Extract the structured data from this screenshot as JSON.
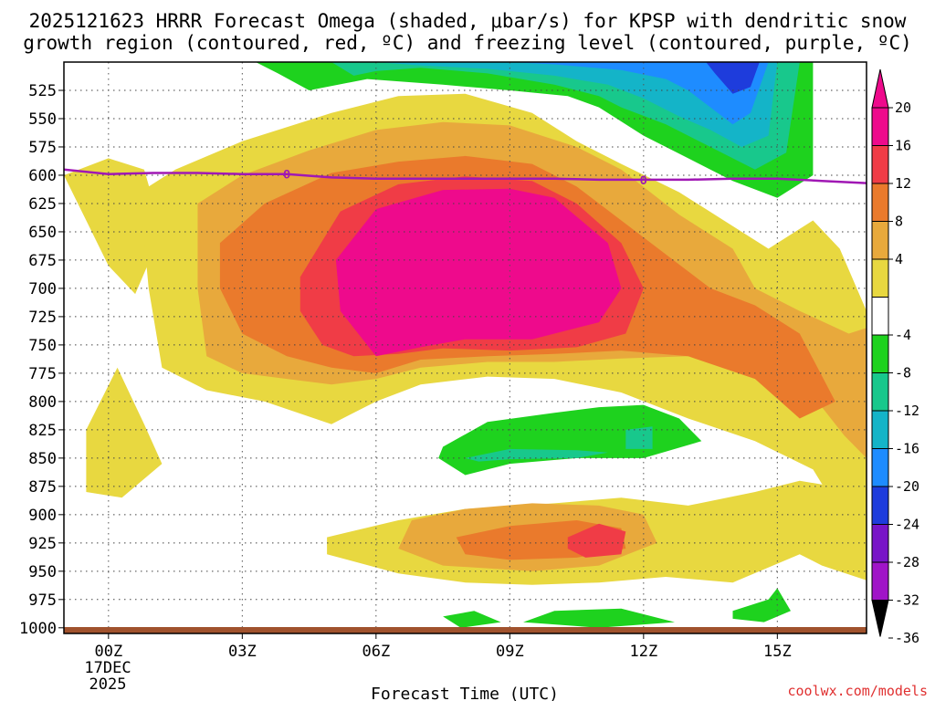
{
  "chart_data": {
    "type": "heatmap",
    "title_line1": "2025121623 HRRR Forecast Omega (shaded, μbar/s) for KPSP with dendritic snow",
    "title_line2": "growth region (contoured, red, ºC) and freezing level (contoured, purple, ºC)",
    "xlabel": "Forecast Time (UTC)",
    "credit": "coolwx.com/models",
    "x_ticks": [
      "00Z",
      "03Z",
      "06Z",
      "09Z",
      "12Z",
      "15Z"
    ],
    "x_ticks_hours": [
      0,
      3,
      6,
      9,
      12,
      15
    ],
    "x_date_line1": "17DEC",
    "x_date_line2": "2025",
    "xlim_hours": [
      -1,
      17
    ],
    "y_ticks": [
      "525",
      "550",
      "575",
      "600",
      "625",
      "650",
      "675",
      "700",
      "725",
      "750",
      "775",
      "800",
      "825",
      "850",
      "875",
      "900",
      "925",
      "950",
      "975",
      "1000"
    ],
    "ylim_hpa": [
      500,
      1005
    ],
    "colorbar_labels": [
      "20",
      "16",
      "12",
      "8",
      "4",
      "-4",
      "-8",
      "-12",
      "-16",
      "-20",
      "-24",
      "-28",
      "-32",
      "-36"
    ],
    "colorbar_colors": [
      "#ee0a8c",
      "#f03c46",
      "#ea7a2c",
      "#e8a93c",
      "#e8d840",
      "#ffffff",
      "#1ed21e",
      "#18c88c",
      "#14b4c8",
      "#1e8cff",
      "#1e3cdc",
      "#7814c8",
      "#a014c8",
      "#a0a0a0",
      "#000000"
    ],
    "freezing_level": {
      "color": "#a018b4",
      "label": "0",
      "label_hours": [
        4,
        12
      ],
      "hours": [
        -1,
        0,
        1,
        2,
        3,
        4,
        5,
        6,
        7,
        8,
        9,
        10,
        11,
        12,
        13,
        14,
        15,
        16,
        17
      ],
      "pressure_hpa": [
        595,
        599,
        598,
        598,
        599,
        599,
        602,
        603,
        603,
        603,
        603,
        603,
        604,
        604,
        604,
        603,
        603,
        605,
        607
      ]
    },
    "ground_color": "#a0522d",
    "omega_regions": [
      {
        "level": 4,
        "points": [
          [
            -1,
            600
          ],
          [
            0,
            585
          ],
          [
            0.8,
            595
          ],
          [
            1.2,
            650
          ],
          [
            0.6,
            705
          ],
          [
            0,
            680
          ],
          [
            -0.5,
            640
          ]
        ]
      },
      {
        "level": 4,
        "points": [
          [
            0.7,
            615
          ],
          [
            1.5,
            595
          ],
          [
            3,
            570
          ],
          [
            5,
            545
          ],
          [
            6.5,
            530
          ],
          [
            8,
            528
          ],
          [
            9.5,
            545
          ],
          [
            10.5,
            570
          ],
          [
            11.5,
            590
          ],
          [
            12.8,
            615
          ],
          [
            13.8,
            640
          ],
          [
            14.8,
            665
          ],
          [
            15.8,
            640
          ],
          [
            16.4,
            665
          ],
          [
            17,
            720
          ],
          [
            17,
            900
          ],
          [
            16.5,
            905
          ],
          [
            15.8,
            860
          ],
          [
            14.5,
            835
          ],
          [
            13,
            815
          ],
          [
            11.5,
            792
          ],
          [
            10,
            780
          ],
          [
            8.5,
            778
          ],
          [
            7,
            785
          ],
          [
            6,
            800
          ],
          [
            5,
            820
          ],
          [
            3.5,
            800
          ],
          [
            2.2,
            790
          ],
          [
            1.2,
            770
          ],
          [
            0.9,
            700
          ]
        ]
      },
      {
        "level": 4,
        "points": [
          [
            -0.5,
            825
          ],
          [
            0.2,
            770
          ],
          [
            0.8,
            820
          ],
          [
            1.2,
            855
          ],
          [
            0.3,
            885
          ],
          [
            -0.5,
            880
          ]
        ]
      },
      {
        "level": 4,
        "points": [
          [
            4.9,
            920
          ],
          [
            6.5,
            905
          ],
          [
            8,
            895
          ],
          [
            10,
            890
          ],
          [
            11.5,
            885
          ],
          [
            13,
            892
          ],
          [
            14.5,
            880
          ],
          [
            15.5,
            870
          ],
          [
            17,
            880
          ],
          [
            17,
            958
          ],
          [
            16,
            945
          ],
          [
            15.5,
            935
          ],
          [
            14,
            960
          ],
          [
            12.5,
            955
          ],
          [
            11,
            960
          ],
          [
            9.5,
            962
          ],
          [
            8,
            960
          ],
          [
            6.5,
            952
          ],
          [
            4.9,
            935
          ]
        ]
      },
      {
        "level": 8,
        "points": [
          [
            2,
            625
          ],
          [
            3,
            600
          ],
          [
            4.5,
            578
          ],
          [
            6,
            560
          ],
          [
            7.5,
            553
          ],
          [
            9,
            556
          ],
          [
            10.5,
            575
          ],
          [
            11.5,
            595
          ],
          [
            12.8,
            635
          ],
          [
            14,
            665
          ],
          [
            14.5,
            700
          ],
          [
            15.5,
            720
          ],
          [
            16.6,
            740
          ],
          [
            17,
            735
          ],
          [
            17,
            850
          ],
          [
            16.5,
            830
          ],
          [
            15.5,
            780
          ],
          [
            14.5,
            760
          ],
          [
            13,
            760
          ],
          [
            11.5,
            762
          ],
          [
            10,
            765
          ],
          [
            8.5,
            765
          ],
          [
            7,
            770
          ],
          [
            6,
            780
          ],
          [
            5,
            785
          ],
          [
            4,
            780
          ],
          [
            3,
            775
          ],
          [
            2.2,
            760
          ],
          [
            2,
            700
          ]
        ]
      },
      {
        "level": 8,
        "points": [
          [
            6.8,
            905
          ],
          [
            8,
            895
          ],
          [
            9.5,
            890
          ],
          [
            11,
            892
          ],
          [
            12,
            900
          ],
          [
            12.3,
            925
          ],
          [
            11,
            945
          ],
          [
            9.5,
            950
          ],
          [
            7.5,
            945
          ],
          [
            6.5,
            930
          ]
        ]
      },
      {
        "level": 12,
        "points": [
          [
            2.5,
            660
          ],
          [
            3.5,
            625
          ],
          [
            5,
            598
          ],
          [
            6.5,
            588
          ],
          [
            8,
            583
          ],
          [
            9.5,
            590
          ],
          [
            10.5,
            610
          ],
          [
            11.5,
            640
          ],
          [
            12.5,
            670
          ],
          [
            13.5,
            700
          ],
          [
            14.5,
            715
          ],
          [
            15.5,
            740
          ],
          [
            16.3,
            800
          ],
          [
            15.5,
            815
          ],
          [
            14.5,
            780
          ],
          [
            13,
            760
          ],
          [
            11.5,
            755
          ],
          [
            10,
            758
          ],
          [
            8.5,
            760
          ],
          [
            7,
            763
          ],
          [
            6,
            775
          ],
          [
            5,
            770
          ],
          [
            4,
            760
          ],
          [
            3,
            740
          ],
          [
            2.5,
            700
          ]
        ]
      },
      {
        "level": 12,
        "points": [
          [
            7.8,
            920
          ],
          [
            9,
            910
          ],
          [
            10.5,
            905
          ],
          [
            11.5,
            912
          ],
          [
            11.6,
            930
          ],
          [
            10.5,
            938
          ],
          [
            9,
            940
          ],
          [
            8,
            935
          ]
        ]
      },
      {
        "level": 16,
        "points": [
          [
            4.3,
            690
          ],
          [
            5.2,
            632
          ],
          [
            6.5,
            608
          ],
          [
            8,
            601
          ],
          [
            9.5,
            605
          ],
          [
            10.5,
            625
          ],
          [
            11.5,
            660
          ],
          [
            12,
            700
          ],
          [
            11.6,
            740
          ],
          [
            10.5,
            752
          ],
          [
            9,
            755
          ],
          [
            7.5,
            753
          ],
          [
            6.5,
            758
          ],
          [
            5.5,
            760
          ],
          [
            4.8,
            750
          ],
          [
            4.3,
            720
          ]
        ]
      },
      {
        "level": 16,
        "points": [
          [
            10.3,
            920
          ],
          [
            11,
            908
          ],
          [
            11.6,
            915
          ],
          [
            11.5,
            935
          ],
          [
            10.7,
            938
          ],
          [
            10.3,
            930
          ]
        ]
      },
      {
        "level": 20,
        "points": [
          [
            5.1,
            675
          ],
          [
            6,
            630
          ],
          [
            7.5,
            613
          ],
          [
            9,
            612
          ],
          [
            10,
            620
          ],
          [
            11.2,
            660
          ],
          [
            11.5,
            700
          ],
          [
            11,
            730
          ],
          [
            9.5,
            745
          ],
          [
            8,
            745
          ],
          [
            7,
            752
          ],
          [
            6,
            760
          ],
          [
            5.2,
            720
          ]
        ]
      },
      {
        "level": -4,
        "points": [
          [
            3.3,
            500
          ],
          [
            13.3,
            500
          ],
          [
            15.8,
            500
          ],
          [
            15.8,
            600
          ],
          [
            15,
            620
          ],
          [
            14,
            605
          ],
          [
            13,
            585
          ],
          [
            12,
            565
          ],
          [
            11,
            540
          ],
          [
            10.3,
            530
          ],
          [
            9,
            525
          ],
          [
            7.5,
            520
          ],
          [
            5.8,
            515
          ],
          [
            4.5,
            525
          ],
          [
            3.8,
            510
          ]
        ]
      },
      {
        "level": -4,
        "points": [
          [
            7.5,
            840
          ],
          [
            8.5,
            818
          ],
          [
            10,
            810
          ],
          [
            11,
            805
          ],
          [
            12,
            803
          ],
          [
            12.8,
            815
          ],
          [
            13.3,
            835
          ],
          [
            12,
            850
          ],
          [
            10.5,
            850
          ],
          [
            9,
            855
          ],
          [
            8,
            865
          ],
          [
            7.4,
            850
          ]
        ]
      },
      {
        "level": -4,
        "points": [
          [
            7.5,
            990
          ],
          [
            8.2,
            985
          ],
          [
            8.8,
            995
          ],
          [
            7.9,
            1000
          ]
        ]
      },
      {
        "level": -4,
        "points": [
          [
            9.3,
            995
          ],
          [
            10,
            985
          ],
          [
            11.5,
            983
          ],
          [
            12.7,
            995
          ],
          [
            11,
            1000
          ]
        ]
      },
      {
        "level": -4,
        "points": [
          [
            14,
            985
          ],
          [
            14.8,
            975
          ],
          [
            15,
            965
          ],
          [
            15.3,
            985
          ],
          [
            14.7,
            995
          ],
          [
            14,
            992
          ]
        ]
      },
      {
        "level": -8,
        "points": [
          [
            5,
            500
          ],
          [
            13,
            500
          ],
          [
            15.5,
            500
          ],
          [
            15.2,
            580
          ],
          [
            14.5,
            595
          ],
          [
            13.5,
            575
          ],
          [
            12.5,
            555
          ],
          [
            11.5,
            540
          ],
          [
            11,
            530
          ],
          [
            10,
            520
          ],
          [
            8.5,
            510
          ],
          [
            7,
            505
          ],
          [
            6,
            508
          ],
          [
            5.5,
            512
          ]
        ]
      },
      {
        "level": -8,
        "points": [
          [
            8,
            850
          ],
          [
            9,
            842
          ],
          [
            10.5,
            843
          ],
          [
            11.2,
            845
          ],
          [
            10.5,
            850
          ],
          [
            9,
            851
          ],
          [
            8.3,
            853
          ]
        ]
      },
      {
        "level": -8,
        "points": [
          [
            11.6,
            825
          ],
          [
            12.2,
            822
          ],
          [
            12.2,
            842
          ],
          [
            11.6,
            842
          ]
        ]
      },
      {
        "level": -12,
        "points": [
          [
            6,
            500
          ],
          [
            13.5,
            500
          ],
          [
            15,
            500
          ],
          [
            14.8,
            565
          ],
          [
            14.2,
            575
          ],
          [
            13.5,
            560
          ],
          [
            12.8,
            548
          ],
          [
            12,
            532
          ],
          [
            11.2,
            520
          ],
          [
            10,
            512
          ],
          [
            8.5,
            506
          ],
          [
            7,
            503
          ]
        ]
      },
      {
        "level": -16,
        "points": [
          [
            9,
            500
          ],
          [
            14.8,
            500
          ],
          [
            14.4,
            545
          ],
          [
            14,
            555
          ],
          [
            13.5,
            540
          ],
          [
            13,
            525
          ],
          [
            12.5,
            515
          ],
          [
            11.5,
            507
          ],
          [
            10,
            502
          ]
        ]
      },
      {
        "level": -20,
        "points": [
          [
            13.4,
            500
          ],
          [
            14.6,
            500
          ],
          [
            14.4,
            522
          ],
          [
            14,
            528
          ],
          [
            13.6,
            510
          ]
        ]
      }
    ]
  }
}
